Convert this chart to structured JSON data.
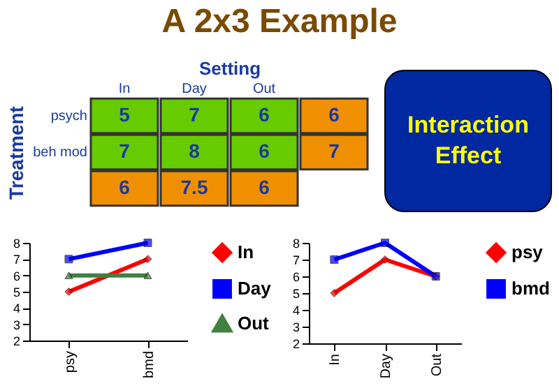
{
  "chart_data": [
    {
      "type": "heatmap",
      "title": "A 2x3 Example",
      "xlabel": "Setting",
      "ylabel": "Treatment",
      "categories": [
        "In",
        "Day",
        "Out",
        null
      ],
      "y_categories": [
        "psych",
        "beh mod",
        null
      ],
      "cells": [
        [
          5,
          7,
          6,
          6
        ],
        [
          7,
          8,
          6,
          7
        ],
        [
          6,
          7.5,
          6,
          null
        ]
      ],
      "data_labels": true,
      "colors": [
        [
          "#66cc00",
          "#66cc00",
          "#66cc00",
          "#f09000"
        ],
        [
          "#66cc00",
          "#66cc00",
          "#66cc00",
          "#f09000"
        ],
        [
          "#f09000",
          "#f09000",
          "#f09000",
          null
        ]
      ]
    },
    {
      "type": "other",
      "annotations": [
        "Interaction Effect"
      ]
    },
    {
      "type": "line",
      "categories": [
        "psy",
        "bmd"
      ],
      "ylim": [
        2,
        8
      ],
      "yticks": [
        2,
        3,
        4,
        5,
        6,
        7,
        8
      ],
      "grid": false,
      "legend": "right",
      "series": [
        {
          "name": "In",
          "color": "#ff0000",
          "marker": "diamond",
          "values": [
            5,
            7
          ]
        },
        {
          "name": "Day",
          "color": "#0000ff",
          "marker": "square",
          "values": [
            7,
            8
          ]
        },
        {
          "name": "Out",
          "color": "#408040",
          "marker": "triangle",
          "values": [
            6,
            6
          ]
        }
      ]
    },
    {
      "type": "line",
      "categories": [
        "In",
        "Day",
        "Out"
      ],
      "ylim": [
        2,
        8
      ],
      "yticks": [
        2,
        3,
        4,
        5,
        6,
        7,
        8
      ],
      "grid": false,
      "legend": "right",
      "series": [
        {
          "name": "psy",
          "color": "#ff0000",
          "marker": "diamond",
          "values": [
            5,
            7,
            6
          ]
        },
        {
          "name": "bmd",
          "color": "#0000ff",
          "marker": "square",
          "values": [
            7,
            8,
            6
          ]
        }
      ]
    }
  ]
}
